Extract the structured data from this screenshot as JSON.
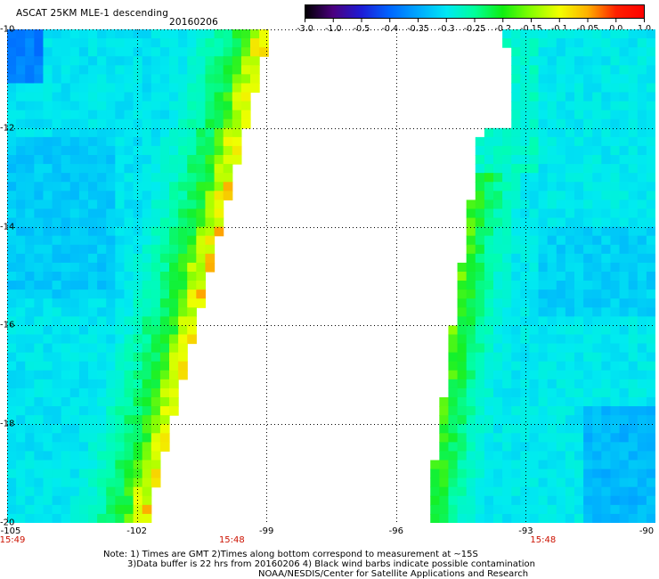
{
  "header": {
    "title": "ASCAT 25KM MLE-1 descending",
    "date": "20160206"
  },
  "colorbar": {
    "ticks": [
      "-3.0",
      "-1.0",
      "-0.5",
      "-0.4",
      "-0.35",
      "-0.3",
      "-0.25",
      "-0.2",
      "-0.15",
      "-0.1",
      "-0.05",
      "0.0",
      "1.0"
    ],
    "colors": [
      "#000000",
      "#4b007f",
      "#1d1cd6",
      "#0066ff",
      "#00a8ff",
      "#00e8f4",
      "#00ff9a",
      "#10ee10",
      "#88ff00",
      "#f2ff00",
      "#ffb000",
      "#ff2000",
      "#ff0000"
    ]
  },
  "map": {
    "lat_labels": [
      "-10",
      "-12",
      "-14",
      "-16",
      "-18",
      "-20"
    ],
    "lon_labels": [
      "-105",
      "-102",
      "-99",
      "-96",
      "-93",
      "-90"
    ],
    "lat_range": [
      -20,
      -10
    ],
    "lon_range": [
      -105,
      -90
    ],
    "time_labels": [
      {
        "text": "15:49",
        "lon": -105
      },
      {
        "text": "15:48",
        "lon": -99.8
      },
      {
        "text": "15:48",
        "lon": -92.6
      }
    ]
  },
  "notes": {
    "line1": "Note: 1) Times are GMT 2)Times along bottom correspond to measurement at ~15S",
    "line2": "3)Data buffer is 22 hrs from 20160206 4) Black wind barbs indicate possible contamination",
    "line3": "NOAA/NESDIS/Center for Satellite Applications and Research"
  }
}
